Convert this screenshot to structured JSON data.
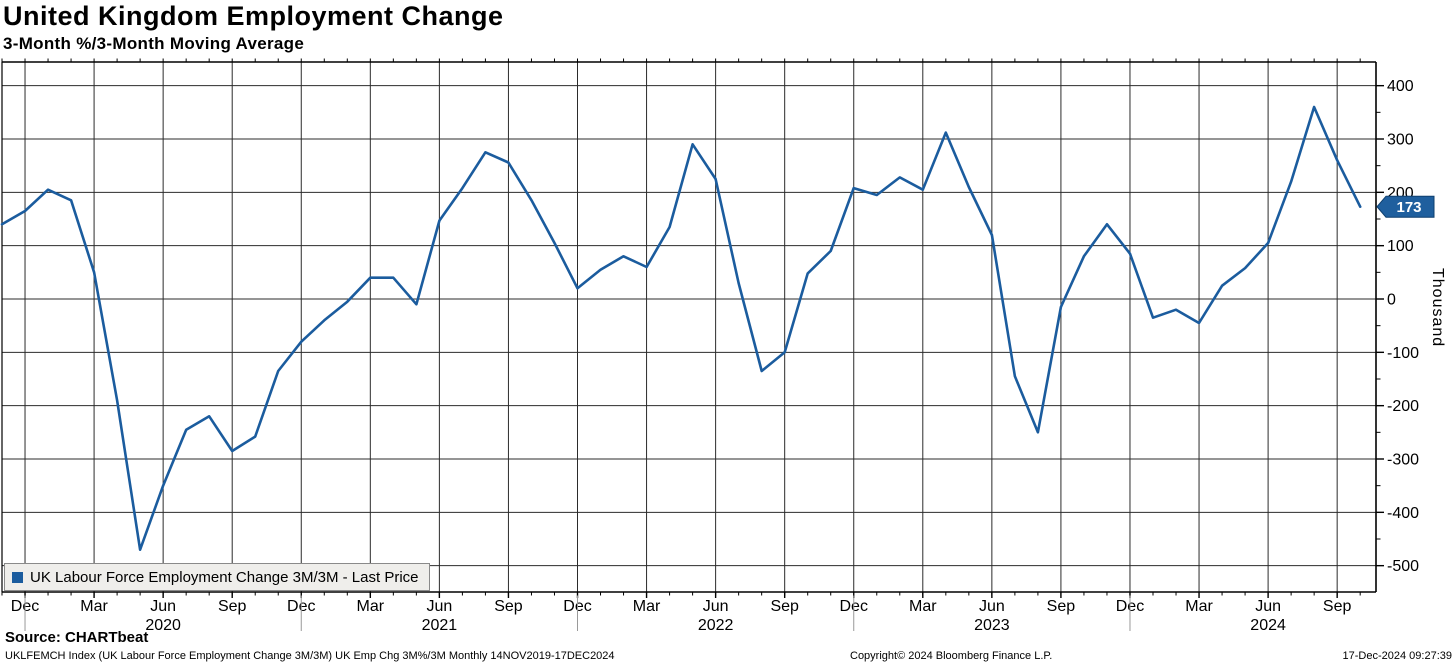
{
  "header": {
    "title": "United Kingdom Employment Change",
    "subtitle": "3-Month %/3-Month Moving Average"
  },
  "y_axis": {
    "unit_label": "Thousand",
    "last_price_label": "173",
    "tag_color": "#1f5f9e"
  },
  "x_axis": {
    "tick_labels": [
      "Dec",
      "Mar",
      "Jun",
      "Sep",
      "Dec",
      "Mar",
      "Jun",
      "Sep",
      "Dec",
      "Mar",
      "Jun",
      "Sep",
      "Dec",
      "Mar",
      "Jun",
      "Sep",
      "Dec",
      "Mar",
      "Jun",
      "Sep"
    ],
    "year_labels": [
      "2020",
      "2021",
      "2022",
      "2023",
      "2024"
    ]
  },
  "legend": {
    "label": "UK Labour Force Employment Change 3M/3M - Last Price",
    "marker_color": "#1b5c9e"
  },
  "source_line": "Source: CHARTbeat",
  "footer": {
    "left": "UKLFEMCH Index (UK Labour Force Employment Change 3M/3M) UK Emp Chg 3M%/3M  Monthly 14NOV2019-17DEC2024",
    "center": "Copyright© 2024 Bloomberg Finance L.P.",
    "right": "17-Dec-2024 09:27:39"
  },
  "chart_data": {
    "type": "line",
    "title": "United Kingdom Employment Change",
    "subtitle": "3-Month %/3-Month Moving Average",
    "ylabel": "Thousand",
    "ylim": [
      -550,
      445
    ],
    "y_ticks": [
      400,
      300,
      200,
      100,
      0,
      -100,
      -200,
      -300,
      -400,
      -500
    ],
    "grid": true,
    "legend_position": "bottom-left",
    "last_price": 173,
    "x": [
      "2019-11",
      "2019-12",
      "2020-01",
      "2020-02",
      "2020-03",
      "2020-04",
      "2020-05",
      "2020-06",
      "2020-07",
      "2020-08",
      "2020-09",
      "2020-10",
      "2020-11",
      "2020-12",
      "2021-01",
      "2021-02",
      "2021-03",
      "2021-04",
      "2021-05",
      "2021-06",
      "2021-07",
      "2021-08",
      "2021-09",
      "2021-10",
      "2021-11",
      "2021-12",
      "2022-01",
      "2022-02",
      "2022-03",
      "2022-04",
      "2022-05",
      "2022-06",
      "2022-07",
      "2022-08",
      "2022-09",
      "2022-10",
      "2022-11",
      "2022-12",
      "2023-01",
      "2023-02",
      "2023-03",
      "2023-04",
      "2023-05",
      "2023-06",
      "2023-07",
      "2023-08",
      "2023-09",
      "2023-10",
      "2023-11",
      "2023-12",
      "2024-01",
      "2024-02",
      "2024-03",
      "2024-04",
      "2024-05",
      "2024-06",
      "2024-07",
      "2024-08",
      "2024-09",
      "2024-10"
    ],
    "series": [
      {
        "name": "UK Labour Force Employment Change 3M/3M - Last Price",
        "color": "#1b5c9e",
        "values": [
          140,
          165,
          205,
          185,
          50,
          -190,
          -470,
          -350,
          -245,
          -220,
          -285,
          -258,
          -135,
          -80,
          -40,
          -5,
          40,
          40,
          -10,
          147,
          208,
          275,
          256,
          185,
          105,
          20,
          55,
          80,
          60,
          135,
          290,
          225,
          30,
          -135,
          -100,
          48,
          90,
          208,
          195,
          228,
          205,
          312,
          210,
          120,
          -145,
          -250,
          -15,
          80,
          140,
          85,
          -35,
          -20,
          -45,
          25,
          58,
          105,
          220,
          360,
          260,
          173
        ]
      }
    ]
  }
}
